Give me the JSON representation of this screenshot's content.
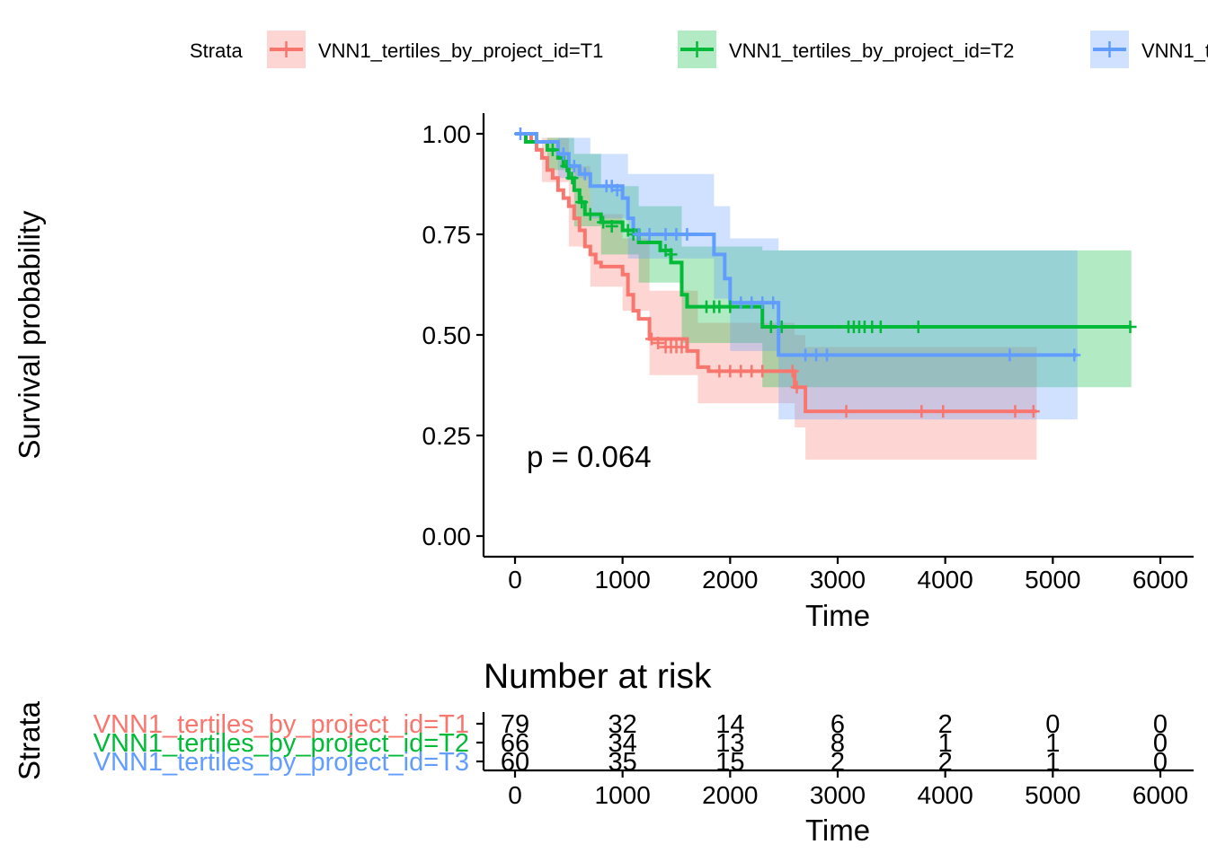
{
  "legend": {
    "title": "Strata",
    "placement": "top"
  },
  "colors": {
    "T1": "#F8766D",
    "T2": "#00BA38",
    "T3": "#619CFF",
    "axis": "#000000"
  },
  "chart_data": [
    {
      "type": "line",
      "subtype": "kaplan-meier",
      "xlabel": "Time",
      "ylabel": "Survival probability",
      "xlim": [
        0,
        6000
      ],
      "ylim": [
        0,
        1
      ],
      "xticks": [
        "0",
        "1000",
        "2000",
        "3000",
        "4000",
        "5000",
        "6000"
      ],
      "yticks": [
        "0.00",
        "0.25",
        "0.50",
        "0.75",
        "1.00"
      ],
      "annotation": "p = 0.064",
      "grid": false,
      "series": [
        {
          "name": "VNN1_tertiles_by_project_id=T1",
          "color": "#F8766D",
          "steps": [
            [
              0,
              1.0
            ],
            [
              150,
              0.98
            ],
            [
              200,
              0.96
            ],
            [
              250,
              0.94
            ],
            [
              300,
              0.91
            ],
            [
              350,
              0.89
            ],
            [
              400,
              0.86
            ],
            [
              450,
              0.84
            ],
            [
              500,
              0.82
            ],
            [
              550,
              0.79
            ],
            [
              600,
              0.76
            ],
            [
              650,
              0.72
            ],
            [
              700,
              0.7
            ],
            [
              750,
              0.68
            ],
            [
              800,
              0.67
            ],
            [
              1000,
              0.65
            ],
            [
              1050,
              0.6
            ],
            [
              1100,
              0.56
            ],
            [
              1150,
              0.54
            ],
            [
              1250,
              0.49
            ],
            [
              1600,
              0.46
            ],
            [
              1700,
              0.42
            ],
            [
              1800,
              0.41
            ],
            [
              2600,
              0.37
            ],
            [
              2700,
              0.31
            ],
            [
              4850,
              0.31
            ]
          ],
          "lower": [
            [
              0,
              1.0
            ],
            [
              250,
              0.88
            ],
            [
              500,
              0.72
            ],
            [
              700,
              0.62
            ],
            [
              1000,
              0.56
            ],
            [
              1250,
              0.4
            ],
            [
              1700,
              0.33
            ],
            [
              2600,
              0.27
            ],
            [
              2700,
              0.19
            ],
            [
              4850,
              0.19
            ]
          ],
          "upper": [
            [
              0,
              1.0
            ],
            [
              250,
              0.99
            ],
            [
              500,
              0.92
            ],
            [
              700,
              0.8
            ],
            [
              1000,
              0.74
            ],
            [
              1250,
              0.61
            ],
            [
              1700,
              0.53
            ],
            [
              2600,
              0.5
            ],
            [
              2700,
              0.47
            ],
            [
              4850,
              0.47
            ]
          ],
          "censored": [
            [
              1270,
              0.49
            ],
            [
              1330,
              0.48
            ],
            [
              1400,
              0.47
            ],
            [
              1450,
              0.47
            ],
            [
              1500,
              0.47
            ],
            [
              1550,
              0.47
            ],
            [
              1900,
              0.41
            ],
            [
              2000,
              0.41
            ],
            [
              2100,
              0.41
            ],
            [
              2200,
              0.41
            ],
            [
              2300,
              0.41
            ],
            [
              2580,
              0.41
            ],
            [
              2620,
              0.37
            ],
            [
              3080,
              0.31
            ],
            [
              3780,
              0.31
            ],
            [
              3980,
              0.31
            ],
            [
              4650,
              0.31
            ],
            [
              4820,
              0.31
            ]
          ]
        },
        {
          "name": "VNN1_tertiles_by_project_id=T2",
          "color": "#00BA38",
          "steps": [
            [
              0,
              1.0
            ],
            [
              100,
              0.98
            ],
            [
              300,
              0.96
            ],
            [
              400,
              0.94
            ],
            [
              450,
              0.92
            ],
            [
              500,
              0.89
            ],
            [
              550,
              0.86
            ],
            [
              600,
              0.83
            ],
            [
              650,
              0.8
            ],
            [
              800,
              0.78
            ],
            [
              1000,
              0.76
            ],
            [
              1150,
              0.73
            ],
            [
              1350,
              0.71
            ],
            [
              1450,
              0.68
            ],
            [
              1550,
              0.6
            ],
            [
              1600,
              0.57
            ],
            [
              2300,
              0.52
            ],
            [
              5730,
              0.52
            ]
          ],
          "lower": [
            [
              0,
              1.0
            ],
            [
              300,
              0.91
            ],
            [
              550,
              0.77
            ],
            [
              800,
              0.7
            ],
            [
              1150,
              0.63
            ],
            [
              1550,
              0.48
            ],
            [
              2300,
              0.37
            ],
            [
              5730,
              0.37
            ]
          ],
          "upper": [
            [
              0,
              1.0
            ],
            [
              300,
              0.99
            ],
            [
              550,
              0.95
            ],
            [
              800,
              0.87
            ],
            [
              1150,
              0.82
            ],
            [
              1550,
              0.72
            ],
            [
              2300,
              0.71
            ],
            [
              5730,
              0.71
            ]
          ],
          "censored": [
            [
              350,
              0.96
            ],
            [
              480,
              0.92
            ],
            [
              530,
              0.89
            ],
            [
              620,
              0.83
            ],
            [
              700,
              0.8
            ],
            [
              820,
              0.78
            ],
            [
              900,
              0.77
            ],
            [
              1050,
              0.76
            ],
            [
              1100,
              0.75
            ],
            [
              1400,
              0.71
            ],
            [
              1450,
              0.7
            ],
            [
              1780,
              0.57
            ],
            [
              1850,
              0.57
            ],
            [
              1900,
              0.57
            ],
            [
              2000,
              0.57
            ],
            [
              2380,
              0.52
            ],
            [
              2480,
              0.52
            ],
            [
              3100,
              0.52
            ],
            [
              3150,
              0.52
            ],
            [
              3200,
              0.52
            ],
            [
              3250,
              0.52
            ],
            [
              3320,
              0.52
            ],
            [
              3400,
              0.52
            ],
            [
              3750,
              0.52
            ],
            [
              5720,
              0.52
            ]
          ]
        },
        {
          "name": "VNN1_tertiles_by_project_id=T3",
          "color": "#619CFF",
          "steps": [
            [
              0,
              1.0
            ],
            [
              200,
              0.98
            ],
            [
              400,
              0.95
            ],
            [
              500,
              0.92
            ],
            [
              600,
              0.9
            ],
            [
              700,
              0.87
            ],
            [
              1000,
              0.84
            ],
            [
              1050,
              0.79
            ],
            [
              1100,
              0.75
            ],
            [
              1850,
              0.7
            ],
            [
              1950,
              0.64
            ],
            [
              2000,
              0.58
            ],
            [
              2450,
              0.45
            ],
            [
              5230,
              0.45
            ]
          ],
          "lower": [
            [
              0,
              1.0
            ],
            [
              400,
              0.89
            ],
            [
              700,
              0.79
            ],
            [
              1050,
              0.69
            ],
            [
              1850,
              0.59
            ],
            [
              2000,
              0.46
            ],
            [
              2450,
              0.29
            ],
            [
              5230,
              0.29
            ]
          ],
          "upper": [
            [
              0,
              1.0
            ],
            [
              400,
              0.99
            ],
            [
              700,
              0.95
            ],
            [
              1050,
              0.9
            ],
            [
              1850,
              0.82
            ],
            [
              2000,
              0.74
            ],
            [
              2450,
              0.71
            ],
            [
              5230,
              0.71
            ]
          ],
          "censored": [
            [
              50,
              1.0
            ],
            [
              450,
              0.95
            ],
            [
              550,
              0.92
            ],
            [
              650,
              0.9
            ],
            [
              850,
              0.87
            ],
            [
              900,
              0.87
            ],
            [
              950,
              0.86
            ],
            [
              1150,
              0.75
            ],
            [
              1250,
              0.75
            ],
            [
              1400,
              0.75
            ],
            [
              1500,
              0.75
            ],
            [
              1600,
              0.75
            ],
            [
              2100,
              0.58
            ],
            [
              2200,
              0.58
            ],
            [
              2300,
              0.58
            ],
            [
              2400,
              0.58
            ],
            [
              2700,
              0.45
            ],
            [
              2800,
              0.45
            ],
            [
              2900,
              0.45
            ],
            [
              4600,
              0.45
            ],
            [
              5200,
              0.45
            ]
          ]
        }
      ]
    },
    {
      "type": "table",
      "title": "Number at risk",
      "xlabel": "Time",
      "ylabel": "Strata",
      "xlim": [
        0,
        6000
      ],
      "xticks": [
        "0",
        "1000",
        "2000",
        "3000",
        "4000",
        "5000",
        "6000"
      ],
      "times": [
        0,
        1000,
        2000,
        3000,
        4000,
        5000,
        6000
      ],
      "rows": [
        {
          "name": "VNN1_tertiles_by_project_id=T1",
          "color": "#F8766D",
          "values": [
            "79",
            "32",
            "14",
            "6",
            "2",
            "0",
            "0"
          ]
        },
        {
          "name": "VNN1_tertiles_by_project_id=T2",
          "color": "#00BA38",
          "values": [
            "66",
            "34",
            "13",
            "8",
            "1",
            "1",
            "0"
          ]
        },
        {
          "name": "VNN1_tertiles_by_project_id=T3",
          "color": "#619CFF",
          "values": [
            "60",
            "35",
            "15",
            "2",
            "2",
            "1",
            "0"
          ]
        }
      ]
    }
  ]
}
